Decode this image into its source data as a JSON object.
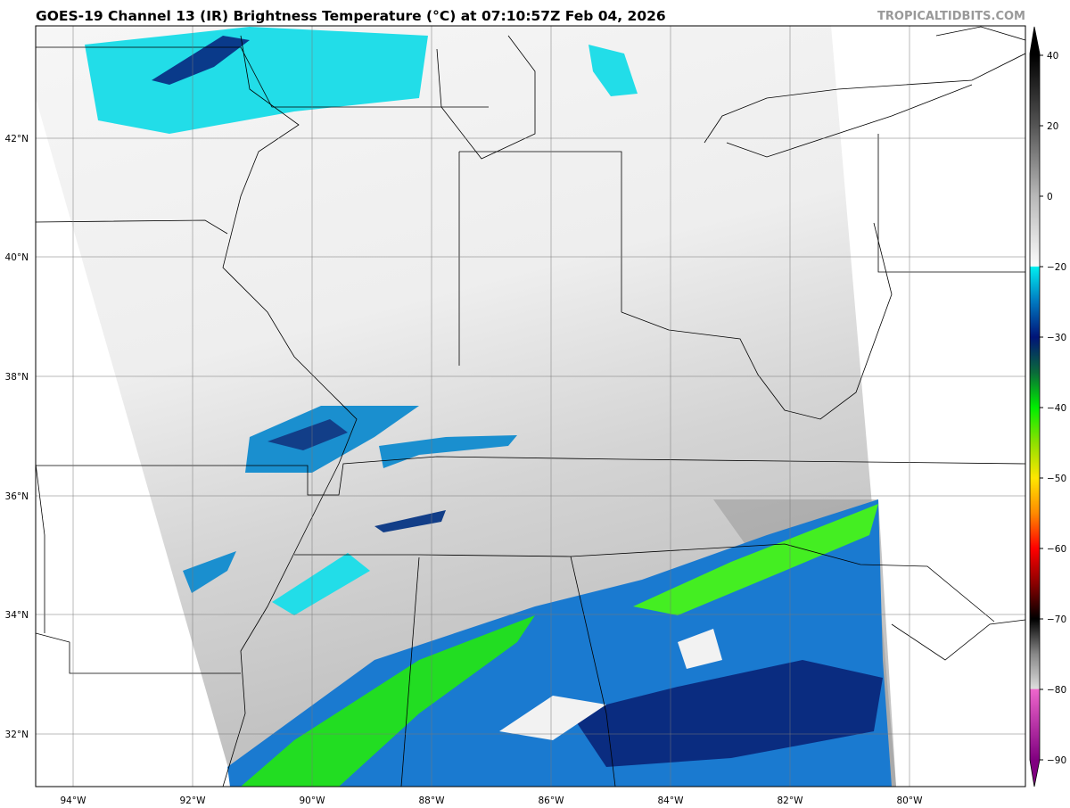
{
  "title": "GOES-19 Channel 13 (IR) Brightness Temperature (°C) at 07:10:57Z Feb 04, 2026",
  "credit": "TROPICALTIDBITS.COM",
  "longitude_labels": [
    "94°W",
    "92°W",
    "90°W",
    "88°W",
    "86°W",
    "84°W",
    "82°W",
    "80°W"
  ],
  "latitude_labels": [
    "42°N",
    "40°N",
    "38°N",
    "36°N",
    "34°N",
    "32°N"
  ],
  "colorbar": {
    "tick_labels": [
      "40",
      "20",
      "0",
      "−20",
      "−30",
      "−40",
      "−50",
      "−60",
      "−70",
      "−80",
      "−90"
    ],
    "tick_values": [
      40,
      20,
      0,
      -20,
      -30,
      -40,
      -50,
      -60,
      -70,
      -80,
      -90
    ],
    "colormap": [
      {
        "value": 40,
        "color": "#000000"
      },
      {
        "value": 20,
        "color": "#555555"
      },
      {
        "value": 0,
        "color": "#b8b8b8"
      },
      {
        "value": -19.9,
        "color": "#fbfbfb"
      },
      {
        "value": -20,
        "color": "#00f0f0"
      },
      {
        "value": -25,
        "color": "#0078c0"
      },
      {
        "value": -30,
        "color": "#001478"
      },
      {
        "value": -35,
        "color": "#0a6a3a"
      },
      {
        "value": -40,
        "color": "#00ee00"
      },
      {
        "value": -45,
        "color": "#8ee000"
      },
      {
        "value": -50,
        "color": "#ffe600"
      },
      {
        "value": -55,
        "color": "#ff8a00"
      },
      {
        "value": -60,
        "color": "#ff0000"
      },
      {
        "value": -65,
        "color": "#8a0000"
      },
      {
        "value": -70,
        "color": "#000000"
      },
      {
        "value": -75,
        "color": "#888888"
      },
      {
        "value": -79.9,
        "color": "#dddddd"
      },
      {
        "value": -80,
        "color": "#ee66cc"
      },
      {
        "value": -90,
        "color": "#800080"
      }
    ]
  }
}
